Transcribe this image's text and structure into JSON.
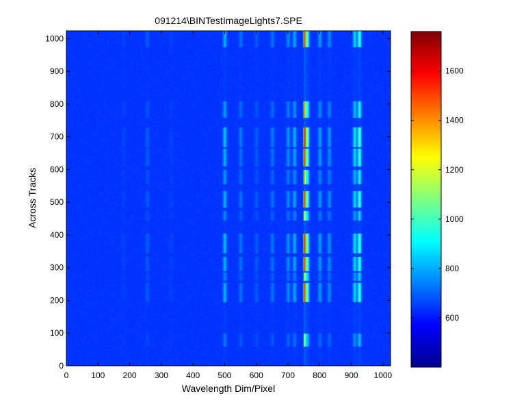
{
  "chart_data": {
    "type": "heatmap",
    "title": "091214\\BINTestImageLights7.SPE",
    "xlabel": "Wavelength Dim/Pixel",
    "ylabel": "Across Tracks",
    "xlim": [
      0,
      1024
    ],
    "ylim": [
      0,
      1024
    ],
    "xticks": [
      0,
      100,
      200,
      300,
      400,
      500,
      600,
      700,
      800,
      900,
      1000
    ],
    "yticks": [
      0,
      100,
      200,
      300,
      400,
      500,
      600,
      700,
      800,
      900,
      1000
    ],
    "colorbar": {
      "range": [
        400,
        1760
      ],
      "ticks": [
        600,
        800,
        1000,
        1200,
        1400,
        1600
      ],
      "colormap": "jet"
    },
    "background_level": 640,
    "spectral_lines": [
      {
        "x": 180,
        "peak": 660
      },
      {
        "x": 255,
        "peak": 700
      },
      {
        "x": 330,
        "peak": 660
      },
      {
        "x": 500,
        "peak": 840
      },
      {
        "x": 550,
        "peak": 740
      },
      {
        "x": 600,
        "peak": 700
      },
      {
        "x": 650,
        "peak": 740
      },
      {
        "x": 700,
        "peak": 780
      },
      {
        "x": 720,
        "peak": 820
      },
      {
        "x": 752,
        "peak": 1760
      },
      {
        "x": 760,
        "peak": 1100
      },
      {
        "x": 800,
        "peak": 800
      },
      {
        "x": 830,
        "peak": 780
      },
      {
        "x": 910,
        "peak": 900
      },
      {
        "x": 925,
        "peak": 1050
      }
    ],
    "tracks": [
      {
        "y_min": 60,
        "y_max": 100,
        "intensity": 0.45
      },
      {
        "y_min": 195,
        "y_max": 255,
        "intensity": 0.85
      },
      {
        "y_min": 260,
        "y_max": 285,
        "intensity": 0.55
      },
      {
        "y_min": 290,
        "y_max": 335,
        "intensity": 0.85
      },
      {
        "y_min": 345,
        "y_max": 405,
        "intensity": 0.9
      },
      {
        "y_min": 445,
        "y_max": 475,
        "intensity": 0.55
      },
      {
        "y_min": 485,
        "y_max": 535,
        "intensity": 0.85
      },
      {
        "y_min": 555,
        "y_max": 600,
        "intensity": 0.65
      },
      {
        "y_min": 610,
        "y_max": 665,
        "intensity": 0.85
      },
      {
        "y_min": 670,
        "y_max": 730,
        "intensity": 0.95
      },
      {
        "y_min": 760,
        "y_max": 810,
        "intensity": 0.7
      },
      {
        "y_min": 975,
        "y_max": 1030,
        "intensity": 0.85
      }
    ]
  }
}
